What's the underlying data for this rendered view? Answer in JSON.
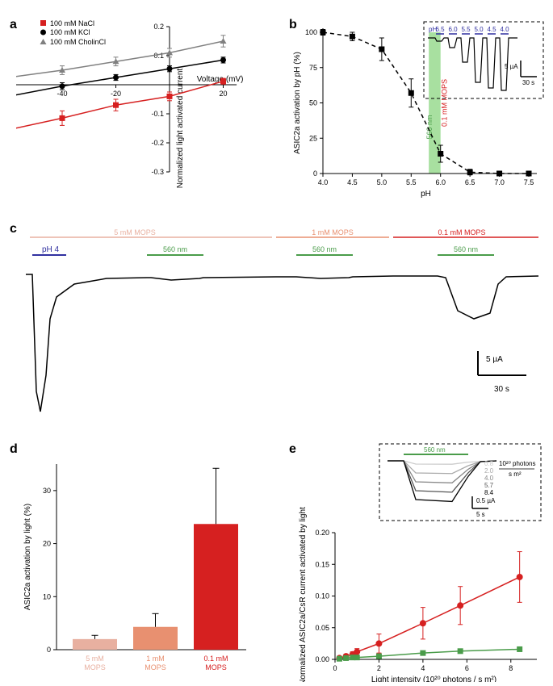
{
  "panel_a": {
    "type": "scatter-line",
    "label": "a",
    "legend": [
      {
        "label": "100 mM NaCl",
        "color": "#d62020",
        "marker": "square"
      },
      {
        "label": "100 mM KCl",
        "color": "#000000",
        "marker": "circle"
      },
      {
        "label": "100 mM CholinCl",
        "color": "#808080",
        "marker": "triangle"
      }
    ],
    "x_label": "Voltage (mV)",
    "y_label": "Normalized light activated current",
    "x_ticks": [
      -60,
      -40,
      -20,
      0,
      20
    ],
    "y_ticks": [
      -0.3,
      -0.2,
      -0.1,
      0,
      0.1,
      0.2
    ],
    "series": {
      "nacl": {
        "x": [
          -60,
          -40,
          -20,
          0,
          20
        ],
        "y": [
          -0.155,
          -0.115,
          -0.07,
          -0.04,
          0.012
        ],
        "err": [
          0.03,
          0.025,
          0.02,
          0.015,
          0.01
        ],
        "color": "#d62020"
      },
      "kcl": {
        "x": [
          -60,
          -40,
          -20,
          0,
          20
        ],
        "y": [
          -0.04,
          -0.005,
          0.025,
          0.055,
          0.085
        ],
        "err": [
          0.015,
          0.012,
          0.01,
          0.01,
          0.01
        ],
        "color": "#000000"
      },
      "cholin": {
        "x": [
          -60,
          -40,
          -20,
          0,
          20
        ],
        "y": [
          0.025,
          0.05,
          0.08,
          0.11,
          0.15
        ],
        "err": [
          0.015,
          0.015,
          0.015,
          0.015,
          0.02
        ],
        "color": "#808080"
      }
    }
  },
  "panel_b": {
    "type": "scatter-line",
    "label": "b",
    "x_label": "pH",
    "y_label": "ASIC2a activation by pH (%)",
    "x_ticks": [
      4.0,
      4.5,
      5.0,
      5.5,
      6.0,
      6.5,
      7.0,
      7.5
    ],
    "y_ticks": [
      0,
      25,
      50,
      75,
      100
    ],
    "green_band_label": "560 nm",
    "red_band_label": "0.1 mM MOPS",
    "green_band_x": [
      5.8,
      6.0
    ],
    "green_color": "#a8e0a0",
    "data": {
      "x": [
        4.0,
        4.5,
        5.0,
        5.5,
        6.0,
        6.5,
        7.0,
        7.5
      ],
      "y": [
        100,
        97,
        88,
        57,
        14,
        1,
        0,
        0
      ],
      "err": [
        2,
        3,
        8,
        10,
        6,
        2,
        1,
        1
      ],
      "color": "#000000"
    },
    "inset": {
      "ph_labels": [
        "6.5",
        "6.0",
        "5.5",
        "5.0",
        "4.5",
        "4.0"
      ],
      "ph_label_prefix": "pH",
      "scale_y": "5 µA",
      "scale_x": "30 s",
      "trace_color": "#000000"
    }
  },
  "panel_c": {
    "type": "trace",
    "label": "c",
    "conditions": [
      {
        "label": "5 mM MOPS",
        "color": "#e8b0a0"
      },
      {
        "label": "1 mM MOPS",
        "color": "#e89070"
      },
      {
        "label": "0.1 mM MOPS",
        "color": "#d62020"
      }
    ],
    "ph4_label": "pH 4",
    "ph4_color": "#3030a0",
    "light_label": "560 nm",
    "light_color": "#4a9c4a",
    "scale_y": "5 µA",
    "scale_x": "30 s",
    "trace_color": "#000000"
  },
  "panel_d": {
    "type": "bar",
    "label": "d",
    "y_label": "ASIC2a activation by light (%)",
    "y_ticks": [
      0,
      10,
      20,
      30
    ],
    "bars": [
      {
        "label": "5 mM MOPS",
        "value": 2.0,
        "err": 0.7,
        "color": "#e8b0a0"
      },
      {
        "label": "1 mM MOPS",
        "value": 4.3,
        "err": 2.5,
        "color": "#e89070"
      },
      {
        "label": "0.1 mM MOPS",
        "value": 23.7,
        "err": 10.5,
        "color": "#d62020"
      }
    ],
    "bar_width": 0.7
  },
  "panel_e": {
    "type": "scatter-line",
    "label": "e",
    "x_label": "Light intensity (10²⁰ photons / s m²)",
    "y_label": "Normalized ASIC2a/CsR current activated by light",
    "x_ticks": [
      0,
      2,
      4,
      6,
      8
    ],
    "y_ticks": [
      0.0,
      0.05,
      0.1,
      0.15,
      0.2
    ],
    "series": {
      "red": {
        "x": [
          0.2,
          0.5,
          0.8,
          1.0,
          2.0,
          4.0,
          5.7,
          8.4
        ],
        "y": [
          0.002,
          0.005,
          0.008,
          0.012,
          0.025,
          0.057,
          0.085,
          0.13
        ],
        "err": [
          0.002,
          0.003,
          0.004,
          0.005,
          0.015,
          0.025,
          0.03,
          0.04
        ],
        "color": "#d62020",
        "marker": "circle"
      },
      "green": {
        "x": [
          0.2,
          0.5,
          0.8,
          1.0,
          2.0,
          4.0,
          5.7,
          8.4
        ],
        "y": [
          0.001,
          0.002,
          0.003,
          0.003,
          0.005,
          0.01,
          0.013,
          0.016
        ],
        "err": [
          0.001,
          0.001,
          0.001,
          0.001,
          0.002,
          0.002,
          0.002,
          0.002
        ],
        "color": "#4a9c4a",
        "marker": "square"
      }
    },
    "inset": {
      "light_label": "560 nm",
      "intensities": [
        "0.8",
        "2.0",
        "4.0",
        "5.7",
        "8.4"
      ],
      "intensity_colors": [
        "#cccccc",
        "#aaaaaa",
        "#888888",
        "#555555",
        "#000000"
      ],
      "unit_label1": "10²⁰ photons",
      "unit_label2": "s m²",
      "scale_y": "0.5 µA",
      "scale_x": "5 s"
    }
  }
}
